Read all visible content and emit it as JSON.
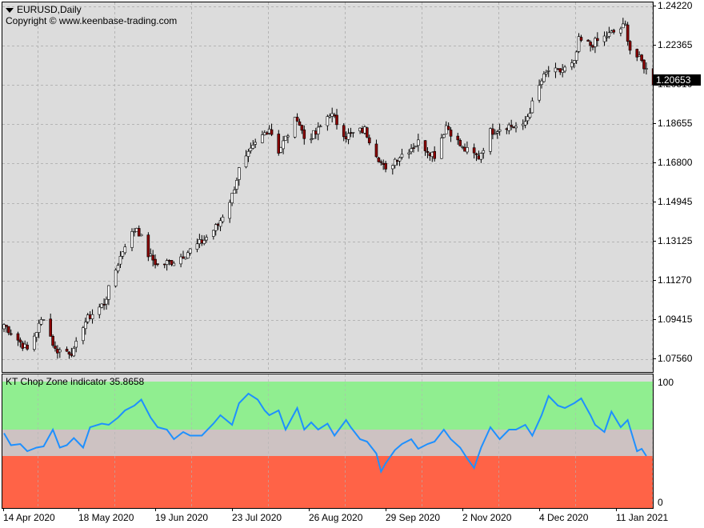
{
  "chart_window": {
    "symbol_title": "EURUSD,Daily",
    "copyright": "Copyright © www.keenbase-trading.com",
    "price_axis_ticks": [
      "1.24220",
      "1.22365",
      "1.20510",
      "1.18655",
      "1.16800",
      "1.14945",
      "1.13125",
      "1.11270",
      "1.09415",
      "1.07560"
    ],
    "current_price_label": "1.20653",
    "date_labels": [
      "14 Apr 2020",
      "18 May 2020",
      "19 Jun 2020",
      "23 Jul 2020",
      "26 Aug 2020",
      "29 Sep 2020",
      "2 Nov 2020",
      "4 Dec 2020",
      "11 Jan 2021"
    ],
    "colors": {
      "background": "#dcdcdc",
      "grid": "#b4b4b4",
      "bull_candle": "#ffffff",
      "bear_candle": "#8b0000",
      "wick": "#000000",
      "indicator_line": "#1e90ff",
      "zone_high": "#90ee90",
      "zone_mid": "#cdc2c2",
      "zone_low": "#ff6347"
    }
  },
  "indicator": {
    "label": "KT Chop Zone indicator 35.8658",
    "axis_ticks": [
      "100",
      "0"
    ]
  },
  "chart_data": [
    {
      "type": "candlestick",
      "title": "EURUSD,Daily",
      "x_start": "2020-04-14",
      "x_end": "2021-01-11",
      "ylim": [
        1.071,
        1.246
      ],
      "y_ticks": [
        1.2422,
        1.22365,
        1.2051,
        1.18655,
        1.168,
        1.14945,
        1.13125,
        1.1127,
        1.09415,
        1.0756
      ],
      "grid": true,
      "close_anchors": [
        [
          "2020-04-14",
          1.092
        ],
        [
          "2020-04-24",
          1.08
        ],
        [
          "2020-05-01",
          1.096
        ],
        [
          "2020-05-06",
          1.08
        ],
        [
          "2020-05-14",
          1.079
        ],
        [
          "2020-05-18",
          1.092
        ],
        [
          "2020-05-21",
          1.096
        ],
        [
          "2020-05-27",
          1.102
        ],
        [
          "2020-06-01",
          1.118
        ],
        [
          "2020-06-05",
          1.13
        ],
        [
          "2020-06-10",
          1.138
        ],
        [
          "2020-06-15",
          1.125
        ],
        [
          "2020-06-19",
          1.12
        ],
        [
          "2020-06-26",
          1.122
        ],
        [
          "2020-07-03",
          1.127
        ],
        [
          "2020-07-09",
          1.132
        ],
        [
          "2020-07-15",
          1.139
        ],
        [
          "2020-07-21",
          1.153
        ],
        [
          "2020-07-24",
          1.165
        ],
        [
          "2020-07-31",
          1.177
        ],
        [
          "2020-08-06",
          1.185
        ],
        [
          "2020-08-10",
          1.174
        ],
        [
          "2020-08-18",
          1.19
        ],
        [
          "2020-08-21",
          1.18
        ],
        [
          "2020-08-26",
          1.182
        ],
        [
          "2020-09-01",
          1.192
        ],
        [
          "2020-09-08",
          1.181
        ],
        [
          "2020-09-16",
          1.184
        ],
        [
          "2020-09-25",
          1.164
        ],
        [
          "2020-09-29",
          1.17
        ],
        [
          "2020-10-09",
          1.178
        ],
        [
          "2020-10-16",
          1.172
        ],
        [
          "2020-10-21",
          1.186
        ],
        [
          "2020-10-28",
          1.175
        ],
        [
          "2020-11-04",
          1.171
        ],
        [
          "2020-11-09",
          1.183
        ],
        [
          "2020-11-16",
          1.186
        ],
        [
          "2020-11-23",
          1.185
        ],
        [
          "2020-12-01",
          1.207
        ],
        [
          "2020-12-04",
          1.212
        ],
        [
          "2020-12-08",
          1.211
        ],
        [
          "2020-12-15",
          1.215
        ],
        [
          "2020-12-17",
          1.226
        ],
        [
          "2020-12-22",
          1.224
        ],
        [
          "2021-01-06",
          1.233
        ],
        [
          "2021-01-08",
          1.222
        ],
        [
          "2021-01-13",
          1.216
        ],
        [
          "2021-01-18",
          1.2065
        ]
      ]
    },
    {
      "type": "line",
      "title": "KT Chop Zone indicator 35.8658",
      "ylim": [
        0,
        100
      ],
      "zones": [
        {
          "name": "high",
          "range": [
            60,
            100
          ]
        },
        {
          "name": "mid",
          "range": [
            38,
            60
          ]
        },
        {
          "name": "low",
          "range": [
            0,
            38
          ]
        }
      ],
      "points": [
        [
          "2020-04-14",
          57
        ],
        [
          "2020-04-17",
          47
        ],
        [
          "2020-04-21",
          48
        ],
        [
          "2020-04-24",
          42
        ],
        [
          "2020-04-28",
          45
        ],
        [
          "2020-05-01",
          46
        ],
        [
          "2020-05-05",
          60
        ],
        [
          "2020-05-08",
          45
        ],
        [
          "2020-05-11",
          47
        ],
        [
          "2020-05-14",
          53
        ],
        [
          "2020-05-18",
          45
        ],
        [
          "2020-05-21",
          62
        ],
        [
          "2020-05-26",
          65
        ],
        [
          "2020-05-29",
          64
        ],
        [
          "2020-06-02",
          70
        ],
        [
          "2020-06-05",
          76
        ],
        [
          "2020-06-09",
          80
        ],
        [
          "2020-06-12",
          85
        ],
        [
          "2020-06-16",
          70
        ],
        [
          "2020-06-19",
          62
        ],
        [
          "2020-06-23",
          60
        ],
        [
          "2020-06-26",
          52
        ],
        [
          "2020-06-30",
          58
        ],
        [
          "2020-07-03",
          55
        ],
        [
          "2020-07-08",
          55
        ],
        [
          "2020-07-13",
          65
        ],
        [
          "2020-07-16",
          72
        ],
        [
          "2020-07-21",
          64
        ],
        [
          "2020-07-24",
          82
        ],
        [
          "2020-07-28",
          90
        ],
        [
          "2020-08-01",
          85
        ],
        [
          "2020-08-04",
          76
        ],
        [
          "2020-08-06",
          72
        ],
        [
          "2020-08-10",
          76
        ],
        [
          "2020-08-13",
          60
        ],
        [
          "2020-08-18",
          78
        ],
        [
          "2020-08-21",
          60
        ],
        [
          "2020-08-24",
          66
        ],
        [
          "2020-08-27",
          60
        ],
        [
          "2020-08-31",
          65
        ],
        [
          "2020-09-03",
          55
        ],
        [
          "2020-09-08",
          68
        ],
        [
          "2020-09-10",
          62
        ],
        [
          "2020-09-14",
          52
        ],
        [
          "2020-09-17",
          50
        ],
        [
          "2020-09-21",
          40
        ],
        [
          "2020-09-23",
          25
        ],
        [
          "2020-09-25",
          32
        ],
        [
          "2020-09-29",
          43
        ],
        [
          "2020-10-02",
          48
        ],
        [
          "2020-10-06",
          52
        ],
        [
          "2020-10-09",
          44
        ],
        [
          "2020-10-13",
          48
        ],
        [
          "2020-10-16",
          50
        ],
        [
          "2020-10-20",
          60
        ],
        [
          "2020-10-23",
          52
        ],
        [
          "2020-10-27",
          45
        ],
        [
          "2020-10-30",
          36
        ],
        [
          "2020-11-02",
          28
        ],
        [
          "2020-11-05",
          45
        ],
        [
          "2020-11-09",
          62
        ],
        [
          "2020-11-13",
          52
        ],
        [
          "2020-11-17",
          60
        ],
        [
          "2020-11-20",
          60
        ],
        [
          "2020-11-24",
          64
        ],
        [
          "2020-11-27",
          55
        ],
        [
          "2020-12-01",
          72
        ],
        [
          "2020-12-04",
          88
        ],
        [
          "2020-12-08",
          80
        ],
        [
          "2020-12-11",
          78
        ],
        [
          "2020-12-15",
          82
        ],
        [
          "2020-12-18",
          86
        ],
        [
          "2020-12-22",
          72
        ],
        [
          "2020-12-24",
          64
        ],
        [
          "2020-12-28",
          58
        ],
        [
          "2020-12-31",
          75
        ],
        [
          "2021-01-04",
          62
        ],
        [
          "2021-01-07",
          68
        ],
        [
          "2021-01-11",
          42
        ],
        [
          "2021-01-13",
          44
        ],
        [
          "2021-01-15",
          38
        ]
      ]
    }
  ]
}
